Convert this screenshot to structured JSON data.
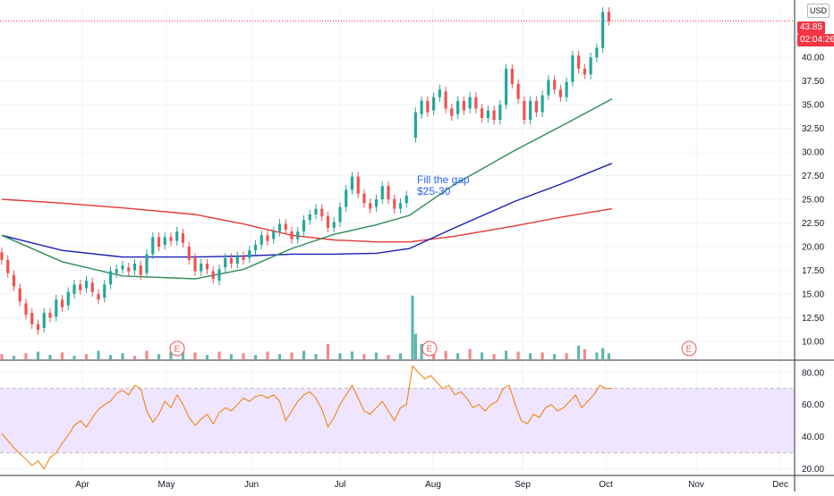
{
  "currency": "USD",
  "price_badge": {
    "value": "43.85",
    "color": "#f23645"
  },
  "countdown_badge": {
    "value": "02:04:26",
    "color": "#f23645"
  },
  "annotation": {
    "line1": "Fill the gap",
    "line2": "$25-30"
  },
  "event_marker": "E",
  "colors": {
    "up": "#26a69a",
    "down": "#ef5350",
    "vol_up": "#5fb8ad",
    "vol_down": "#f58987",
    "ma_short": "#2e8b57",
    "ma_mid": "#1a1fb3",
    "ma_long": "#e53935",
    "rsi": "#f57c00",
    "rsi_band": "#eadcff",
    "rsi_band_line": "#9e9e9e",
    "price_line": "#f23645",
    "grid": "#f0f3fa",
    "axis_text": "#131722"
  },
  "chart_data": {
    "type": "candlestick",
    "price_axis": {
      "ticks": [
        "10.00",
        "12.50",
        "15.00",
        "17.50",
        "20.00",
        "22.50",
        "25.00",
        "27.50",
        "30.00",
        "32.50",
        "35.00",
        "37.50",
        "40.00"
      ],
      "range": [
        8,
        45.5
      ]
    },
    "rsi_axis": {
      "ticks": [
        "20.00",
        "40.00",
        "60.00",
        "80.00"
      ],
      "range": [
        17,
        86
      ],
      "band": [
        30,
        70
      ]
    },
    "time_axis": {
      "labels": [
        "Apr",
        "May",
        "Jun",
        "Jul",
        "Aug",
        "Sep",
        "Oct",
        "Nov",
        "Dec"
      ]
    },
    "last_price": 43.85,
    "candles": [
      {
        "t": 0,
        "o": 19.4,
        "c": 18.6
      },
      {
        "t": 2,
        "o": 18.6,
        "c": 17.2
      },
      {
        "t": 4,
        "o": 17.0,
        "c": 15.8
      },
      {
        "t": 6,
        "o": 15.6,
        "c": 14.2
      },
      {
        "t": 8,
        "o": 14.0,
        "c": 12.8
      },
      {
        "t": 10,
        "o": 13.0,
        "c": 11.8
      },
      {
        "t": 12,
        "o": 11.8,
        "c": 11.2
      },
      {
        "t": 14,
        "o": 11.4,
        "c": 13.0
      },
      {
        "t": 16,
        "o": 13.0,
        "c": 12.5
      },
      {
        "t": 18,
        "o": 12.6,
        "c": 14.4
      },
      {
        "t": 20,
        "o": 14.4,
        "c": 13.6
      },
      {
        "t": 22,
        "o": 13.8,
        "c": 15.2
      },
      {
        "t": 24,
        "o": 15.0,
        "c": 16.0
      },
      {
        "t": 26,
        "o": 16.0,
        "c": 15.4
      },
      {
        "t": 28,
        "o": 15.6,
        "c": 16.4
      },
      {
        "t": 30,
        "o": 16.2,
        "c": 15.2
      },
      {
        "t": 32,
        "o": 15.0,
        "c": 14.4
      },
      {
        "t": 34,
        "o": 14.6,
        "c": 16.0
      },
      {
        "t": 36,
        "o": 16.0,
        "c": 17.4
      },
      {
        "t": 38,
        "o": 17.2,
        "c": 17.6
      },
      {
        "t": 40,
        "o": 17.6,
        "c": 18.0
      },
      {
        "t": 42,
        "o": 17.8,
        "c": 17.4
      },
      {
        "t": 44,
        "o": 17.5,
        "c": 18.2
      },
      {
        "t": 46,
        "o": 18.0,
        "c": 17.0
      },
      {
        "t": 48,
        "o": 17.2,
        "c": 19.2
      },
      {
        "t": 50,
        "o": 19.2,
        "c": 21.0
      },
      {
        "t": 52,
        "o": 21.0,
        "c": 20.0
      },
      {
        "t": 54,
        "o": 20.2,
        "c": 21.0
      },
      {
        "t": 56,
        "o": 21.0,
        "c": 20.6
      },
      {
        "t": 58,
        "o": 20.6,
        "c": 21.6
      },
      {
        "t": 60,
        "o": 21.4,
        "c": 20.4
      },
      {
        "t": 62,
        "o": 20.0,
        "c": 18.6
      },
      {
        "t": 64,
        "o": 18.8,
        "c": 17.4
      },
      {
        "t": 66,
        "o": 17.4,
        "c": 18.2
      },
      {
        "t": 68,
        "o": 18.2,
        "c": 17.6
      },
      {
        "t": 70,
        "o": 17.4,
        "c": 16.6
      },
      {
        "t": 72,
        "o": 16.4,
        "c": 17.6
      },
      {
        "t": 74,
        "o": 17.8,
        "c": 18.8
      },
      {
        "t": 76,
        "o": 18.8,
        "c": 18.2
      },
      {
        "t": 78,
        "o": 18.2,
        "c": 19.0
      },
      {
        "t": 80,
        "o": 19.0,
        "c": 18.6
      },
      {
        "t": 82,
        "o": 18.8,
        "c": 19.6
      },
      {
        "t": 84,
        "o": 19.6,
        "c": 20.2
      },
      {
        "t": 86,
        "o": 20.2,
        "c": 21.2
      },
      {
        "t": 88,
        "o": 21.2,
        "c": 20.6
      },
      {
        "t": 90,
        "o": 20.8,
        "c": 21.6
      },
      {
        "t": 92,
        "o": 21.6,
        "c": 22.4
      },
      {
        "t": 94,
        "o": 22.4,
        "c": 21.8
      },
      {
        "t": 96,
        "o": 21.6,
        "c": 20.8
      },
      {
        "t": 98,
        "o": 20.8,
        "c": 21.6
      },
      {
        "t": 100,
        "o": 21.6,
        "c": 22.8
      },
      {
        "t": 102,
        "o": 22.8,
        "c": 23.4
      },
      {
        "t": 104,
        "o": 23.4,
        "c": 24.0
      },
      {
        "t": 106,
        "o": 24.0,
        "c": 23.2
      },
      {
        "t": 108,
        "o": 23.2,
        "c": 22.0
      },
      {
        "t": 110,
        "o": 22.0,
        "c": 22.6
      },
      {
        "t": 112,
        "o": 22.6,
        "c": 24.2
      },
      {
        "t": 114,
        "o": 24.2,
        "c": 26.0
      },
      {
        "t": 116,
        "o": 26.0,
        "c": 27.4
      },
      {
        "t": 118,
        "o": 27.4,
        "c": 25.6
      },
      {
        "t": 120,
        "o": 25.6,
        "c": 24.6
      },
      {
        "t": 122,
        "o": 24.6,
        "c": 24.0
      },
      {
        "t": 124,
        "o": 24.2,
        "c": 25.0
      },
      {
        "t": 126,
        "o": 25.0,
        "c": 26.4
      },
      {
        "t": 128,
        "o": 26.4,
        "c": 25.0
      },
      {
        "t": 130,
        "o": 25.0,
        "c": 24.0
      },
      {
        "t": 132,
        "o": 24.0,
        "c": 24.6
      },
      {
        "t": 134,
        "o": 24.6,
        "c": 25.4
      },
      {
        "t": 137,
        "o": 31.5,
        "c": 34.2
      },
      {
        "t": 139,
        "o": 34.0,
        "c": 35.4
      },
      {
        "t": 141,
        "o": 35.4,
        "c": 34.2
      },
      {
        "t": 143,
        "o": 34.4,
        "c": 35.8
      },
      {
        "t": 145,
        "o": 35.8,
        "c": 36.6
      },
      {
        "t": 147,
        "o": 36.4,
        "c": 34.6
      },
      {
        "t": 149,
        "o": 34.6,
        "c": 33.8
      },
      {
        "t": 151,
        "o": 34.0,
        "c": 35.4
      },
      {
        "t": 153,
        "o": 35.4,
        "c": 34.4
      },
      {
        "t": 155,
        "o": 34.6,
        "c": 35.8
      },
      {
        "t": 157,
        "o": 35.8,
        "c": 34.6
      },
      {
        "t": 159,
        "o": 34.6,
        "c": 33.6
      },
      {
        "t": 161,
        "o": 33.6,
        "c": 34.4
      },
      {
        "t": 163,
        "o": 34.4,
        "c": 33.4
      },
      {
        "t": 165,
        "o": 33.4,
        "c": 35.0
      },
      {
        "t": 167,
        "o": 35.0,
        "c": 38.8
      },
      {
        "t": 169,
        "o": 38.8,
        "c": 37.2
      },
      {
        "t": 171,
        "o": 37.2,
        "c": 35.6
      },
      {
        "t": 173,
        "o": 35.4,
        "c": 33.4
      },
      {
        "t": 175,
        "o": 33.4,
        "c": 35.4
      },
      {
        "t": 177,
        "o": 35.4,
        "c": 34.2
      },
      {
        "t": 179,
        "o": 34.2,
        "c": 36.0
      },
      {
        "t": 181,
        "o": 36.0,
        "c": 37.6
      },
      {
        "t": 183,
        "o": 37.6,
        "c": 36.6
      },
      {
        "t": 185,
        "o": 36.6,
        "c": 35.8
      },
      {
        "t": 187,
        "o": 35.8,
        "c": 37.4
      },
      {
        "t": 189,
        "o": 37.4,
        "c": 40.2
      },
      {
        "t": 191,
        "o": 40.2,
        "c": 38.8
      },
      {
        "t": 193,
        "o": 38.8,
        "c": 38.2
      },
      {
        "t": 195,
        "o": 38.2,
        "c": 40.0
      },
      {
        "t": 197,
        "o": 40.0,
        "c": 41.0
      },
      {
        "t": 199,
        "o": 41.0,
        "c": 44.8
      },
      {
        "t": 201,
        "o": 44.8,
        "c": 43.85
      }
    ],
    "ma_short": [
      [
        0,
        21.2
      ],
      [
        20,
        18.4
      ],
      [
        40,
        16.9
      ],
      [
        64,
        16.6
      ],
      [
        80,
        17.6
      ],
      [
        96,
        19.8
      ],
      [
        110,
        21.3
      ],
      [
        124,
        22.3
      ],
      [
        135,
        23.3
      ],
      [
        150,
        26.6
      ],
      [
        170,
        30.2
      ],
      [
        185,
        32.7
      ],
      [
        202,
        35.6
      ]
    ],
    "ma_mid": [
      [
        0,
        21.2
      ],
      [
        20,
        19.6
      ],
      [
        40,
        18.9
      ],
      [
        64,
        18.9
      ],
      [
        80,
        19.0
      ],
      [
        96,
        19.2
      ],
      [
        110,
        19.2
      ],
      [
        124,
        19.3
      ],
      [
        135,
        19.8
      ],
      [
        150,
        22.0
      ],
      [
        170,
        24.8
      ],
      [
        185,
        26.6
      ],
      [
        202,
        28.8
      ]
    ],
    "ma_long": [
      [
        0,
        25.0
      ],
      [
        20,
        24.6
      ],
      [
        40,
        24.1
      ],
      [
        64,
        23.4
      ],
      [
        80,
        22.4
      ],
      [
        96,
        21.2
      ],
      [
        110,
        20.7
      ],
      [
        124,
        20.5
      ],
      [
        135,
        20.5
      ],
      [
        150,
        21.1
      ],
      [
        170,
        22.2
      ],
      [
        185,
        23.1
      ],
      [
        202,
        24.0
      ]
    ],
    "volume": [
      {
        "t": 0,
        "v": 0.6,
        "up": false
      },
      {
        "t": 4,
        "v": 0.4,
        "up": true
      },
      {
        "t": 8,
        "v": 0.7,
        "up": false
      },
      {
        "t": 12,
        "v": 0.9,
        "up": true
      },
      {
        "t": 16,
        "v": 0.5,
        "up": true
      },
      {
        "t": 20,
        "v": 0.8,
        "up": false
      },
      {
        "t": 24,
        "v": 0.4,
        "up": true
      },
      {
        "t": 28,
        "v": 0.6,
        "up": false
      },
      {
        "t": 32,
        "v": 1.0,
        "up": true
      },
      {
        "t": 36,
        "v": 0.5,
        "up": true
      },
      {
        "t": 40,
        "v": 0.7,
        "up": true
      },
      {
        "t": 44,
        "v": 0.4,
        "up": false
      },
      {
        "t": 48,
        "v": 1.0,
        "up": false
      },
      {
        "t": 52,
        "v": 0.6,
        "up": true
      },
      {
        "t": 56,
        "v": 0.9,
        "up": true
      },
      {
        "t": 60,
        "v": 1.6,
        "up": true
      },
      {
        "t": 64,
        "v": 0.8,
        "up": false
      },
      {
        "t": 68,
        "v": 0.5,
        "up": true
      },
      {
        "t": 72,
        "v": 0.9,
        "up": false
      },
      {
        "t": 76,
        "v": 0.6,
        "up": true
      },
      {
        "t": 80,
        "v": 0.7,
        "up": false
      },
      {
        "t": 84,
        "v": 0.5,
        "up": true
      },
      {
        "t": 88,
        "v": 0.9,
        "up": false
      },
      {
        "t": 92,
        "v": 0.6,
        "up": true
      },
      {
        "t": 96,
        "v": 0.8,
        "up": false
      },
      {
        "t": 100,
        "v": 1.0,
        "up": true
      },
      {
        "t": 104,
        "v": 0.6,
        "up": true
      },
      {
        "t": 108,
        "v": 1.8,
        "up": false
      },
      {
        "t": 112,
        "v": 0.7,
        "up": true
      },
      {
        "t": 116,
        "v": 0.9,
        "up": true
      },
      {
        "t": 120,
        "v": 0.6,
        "up": false
      },
      {
        "t": 124,
        "v": 0.8,
        "up": true
      },
      {
        "t": 128,
        "v": 0.5,
        "up": false
      },
      {
        "t": 132,
        "v": 0.7,
        "up": true
      },
      {
        "t": 136,
        "v": 7.5,
        "up": true
      },
      {
        "t": 137,
        "v": 3.0,
        "up": true
      },
      {
        "t": 139,
        "v": 1.8,
        "up": true
      },
      {
        "t": 143,
        "v": 0.9,
        "up": false
      },
      {
        "t": 147,
        "v": 1.0,
        "up": false
      },
      {
        "t": 151,
        "v": 0.7,
        "up": true
      },
      {
        "t": 155,
        "v": 1.2,
        "up": false
      },
      {
        "t": 159,
        "v": 0.8,
        "up": true
      },
      {
        "t": 163,
        "v": 0.6,
        "up": false
      },
      {
        "t": 167,
        "v": 1.0,
        "up": true
      },
      {
        "t": 171,
        "v": 0.9,
        "up": false
      },
      {
        "t": 175,
        "v": 0.7,
        "up": true
      },
      {
        "t": 179,
        "v": 0.8,
        "up": false
      },
      {
        "t": 183,
        "v": 0.6,
        "up": true
      },
      {
        "t": 187,
        "v": 0.7,
        "up": false
      },
      {
        "t": 191,
        "v": 1.6,
        "up": true
      },
      {
        "t": 193,
        "v": 1.2,
        "up": false
      },
      {
        "t": 197,
        "v": 0.8,
        "up": true
      },
      {
        "t": 199,
        "v": 1.3,
        "up": true
      },
      {
        "t": 201,
        "v": 0.7,
        "up": true
      }
    ],
    "rsi": [
      [
        0,
        42
      ],
      [
        4,
        33
      ],
      [
        8,
        26
      ],
      [
        10,
        22
      ],
      [
        12,
        25
      ],
      [
        14,
        20
      ],
      [
        16,
        27
      ],
      [
        18,
        30
      ],
      [
        20,
        36
      ],
      [
        22,
        41
      ],
      [
        24,
        47
      ],
      [
        26,
        50
      ],
      [
        28,
        46
      ],
      [
        30,
        52
      ],
      [
        32,
        57
      ],
      [
        34,
        60
      ],
      [
        36,
        62
      ],
      [
        38,
        67
      ],
      [
        40,
        69
      ],
      [
        42,
        66
      ],
      [
        44,
        72
      ],
      [
        46,
        70
      ],
      [
        48,
        56
      ],
      [
        50,
        49
      ],
      [
        52,
        54
      ],
      [
        54,
        62
      ],
      [
        56,
        58
      ],
      [
        58,
        66
      ],
      [
        60,
        60
      ],
      [
        62,
        52
      ],
      [
        64,
        47
      ],
      [
        66,
        51
      ],
      [
        68,
        54
      ],
      [
        70,
        48
      ],
      [
        72,
        55
      ],
      [
        74,
        58
      ],
      [
        76,
        56
      ],
      [
        78,
        60
      ],
      [
        80,
        64
      ],
      [
        82,
        62
      ],
      [
        84,
        65
      ],
      [
        86,
        66
      ],
      [
        88,
        64
      ],
      [
        90,
        66
      ],
      [
        92,
        62
      ],
      [
        94,
        50
      ],
      [
        96,
        56
      ],
      [
        98,
        62
      ],
      [
        100,
        66
      ],
      [
        102,
        68
      ],
      [
        104,
        64
      ],
      [
        106,
        57
      ],
      [
        108,
        46
      ],
      [
        110,
        52
      ],
      [
        112,
        60
      ],
      [
        114,
        66
      ],
      [
        116,
        72
      ],
      [
        118,
        64
      ],
      [
        120,
        56
      ],
      [
        122,
        54
      ],
      [
        124,
        58
      ],
      [
        126,
        62
      ],
      [
        128,
        56
      ],
      [
        130,
        50
      ],
      [
        132,
        58
      ],
      [
        134,
        60
      ],
      [
        136,
        84
      ],
      [
        138,
        80
      ],
      [
        140,
        76
      ],
      [
        142,
        78
      ],
      [
        144,
        74
      ],
      [
        146,
        70
      ],
      [
        148,
        72
      ],
      [
        150,
        66
      ],
      [
        152,
        68
      ],
      [
        154,
        64
      ],
      [
        156,
        58
      ],
      [
        158,
        60
      ],
      [
        160,
        56
      ],
      [
        162,
        60
      ],
      [
        164,
        62
      ],
      [
        166,
        70
      ],
      [
        168,
        72
      ],
      [
        170,
        60
      ],
      [
        172,
        50
      ],
      [
        174,
        48
      ],
      [
        176,
        54
      ],
      [
        178,
        52
      ],
      [
        180,
        58
      ],
      [
        182,
        60
      ],
      [
        184,
        56
      ],
      [
        186,
        58
      ],
      [
        188,
        62
      ],
      [
        190,
        66
      ],
      [
        192,
        58
      ],
      [
        194,
        62
      ],
      [
        196,
        66
      ],
      [
        198,
        72
      ],
      [
        200,
        70
      ],
      [
        202,
        70
      ]
    ]
  }
}
